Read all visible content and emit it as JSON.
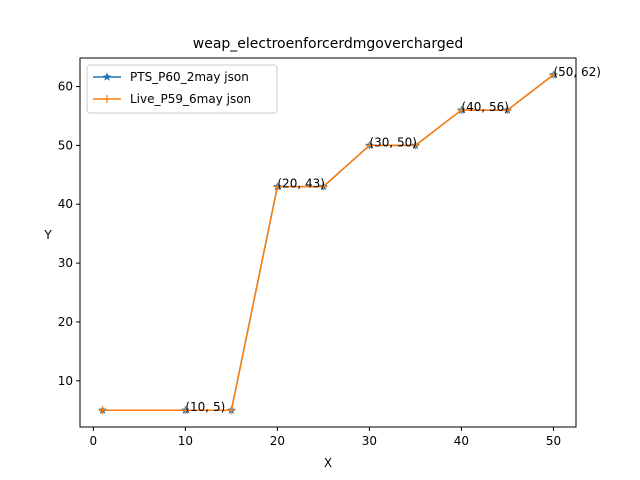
{
  "chart_data": {
    "type": "line",
    "title": "weap_electroenforcerdmgovercharged",
    "xlabel": "X",
    "ylabel": "Y",
    "xlim": [
      -1.45,
      52.45
    ],
    "ylim": [
      2.15,
      64.85
    ],
    "xticks": [
      0,
      10,
      20,
      30,
      40,
      50
    ],
    "yticks": [
      10,
      20,
      30,
      40,
      50,
      60
    ],
    "grid": false,
    "legend_position": "upper left",
    "series": [
      {
        "name": "PTS_P60_2may json",
        "color": "#1f77b4",
        "marker": "star",
        "x": [
          1,
          10,
          15,
          20,
          25,
          30,
          35,
          40,
          45,
          50
        ],
        "y": [
          5,
          5,
          5,
          43,
          43,
          50,
          50,
          56,
          56,
          62
        ]
      },
      {
        "name": "Live_P59_6may json",
        "color": "#ff7f0e",
        "marker": "plus",
        "x": [
          1,
          10,
          15,
          20,
          25,
          30,
          35,
          40,
          45,
          50
        ],
        "y": [
          5,
          5,
          5,
          43,
          43,
          50,
          50,
          56,
          56,
          62
        ]
      }
    ],
    "annotations": [
      {
        "text": "(10, 5)",
        "x": 10,
        "y": 5
      },
      {
        "text": "(20, 43)",
        "x": 20,
        "y": 43
      },
      {
        "text": "(30, 50)",
        "x": 30,
        "y": 50
      },
      {
        "text": "(40, 56)",
        "x": 40,
        "y": 56
      },
      {
        "text": "(50, 62)",
        "x": 50,
        "y": 62
      }
    ]
  }
}
